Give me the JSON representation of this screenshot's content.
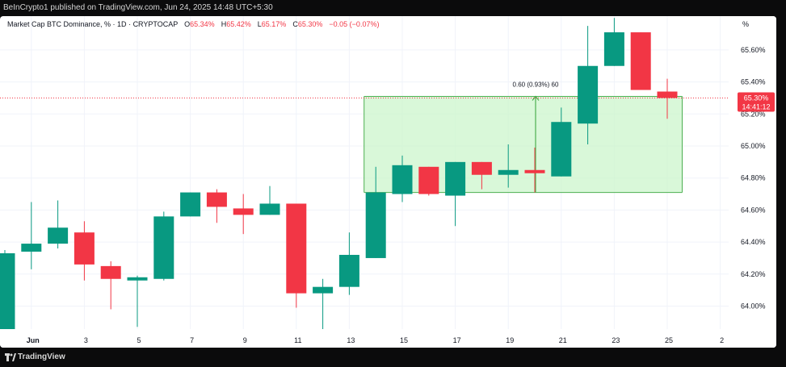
{
  "header": {
    "published_text": "BeInCrypto1 published on TradingView.com, Jun 24, 2025 14:48 UTC+5:30"
  },
  "legend": {
    "symbol": "Market Cap BTC Dominance, %",
    "interval": "1D",
    "exchange": "CRYPTOCAP",
    "o_label": "O",
    "o_value": "65.34%",
    "h_label": "H",
    "h_value": "65.42%",
    "l_label": "L",
    "l_value": "65.17%",
    "c_label": "C",
    "c_value": "65.30%",
    "change": "−0.05 (−0.07%)"
  },
  "price_badge": {
    "price": "65.30%",
    "countdown": "14:41:12",
    "color": "#f23645"
  },
  "measure_label": "0.60 (0.93%) 60",
  "footer": {
    "brand": "TradingView",
    "icon": "tradingview-logo-icon"
  },
  "colors": {
    "up": "#089981",
    "down": "#f23645",
    "range_fill": "#ccf5cc",
    "range_line": "#4caf50"
  },
  "chart_data": {
    "type": "candlestick",
    "y_unit": "%",
    "y_ticks": [
      "65.60%",
      "65.40%",
      "65.20%",
      "65.00%",
      "64.80%",
      "64.60%",
      "64.40%",
      "64.20%",
      "64.00%"
    ],
    "x_ticks": [
      "Jun",
      "3",
      "5",
      "7",
      "9",
      "11",
      "13",
      "15",
      "17",
      "19",
      "21",
      "23",
      "25",
      "2"
    ],
    "grid": true,
    "candles": [
      {
        "date": "May 31",
        "o": 63.85,
        "h": 64.35,
        "l": 63.85,
        "c": 64.33
      },
      {
        "date": "Jun 1",
        "o": 64.34,
        "h": 64.65,
        "l": 64.23,
        "c": 64.39
      },
      {
        "date": "Jun 2",
        "o": 64.39,
        "h": 64.66,
        "l": 64.36,
        "c": 64.49
      },
      {
        "date": "Jun 3",
        "o": 64.46,
        "h": 64.53,
        "l": 64.16,
        "c": 64.26
      },
      {
        "date": "Jun 4",
        "o": 64.25,
        "h": 64.28,
        "l": 63.98,
        "c": 64.17
      },
      {
        "date": "Jun 5",
        "o": 64.16,
        "h": 64.19,
        "l": 63.87,
        "c": 64.18
      },
      {
        "date": "Jun 6",
        "o": 64.17,
        "h": 64.59,
        "l": 64.16,
        "c": 64.56
      },
      {
        "date": "Jun 7",
        "o": 64.56,
        "h": 64.71,
        "l": 64.56,
        "c": 64.71
      },
      {
        "date": "Jun 8",
        "o": 64.71,
        "h": 64.73,
        "l": 64.52,
        "c": 64.62
      },
      {
        "date": "Jun 9",
        "o": 64.61,
        "h": 64.7,
        "l": 64.45,
        "c": 64.57
      },
      {
        "date": "Jun 10",
        "o": 64.57,
        "h": 64.75,
        "l": 64.57,
        "c": 64.64
      },
      {
        "date": "Jun 11",
        "o": 64.64,
        "h": 64.64,
        "l": 63.99,
        "c": 64.08
      },
      {
        "date": "Jun 12",
        "o": 64.08,
        "h": 64.17,
        "l": 63.84,
        "c": 64.12
      },
      {
        "date": "Jun 13",
        "o": 64.12,
        "h": 64.46,
        "l": 64.07,
        "c": 64.32
      },
      {
        "date": "Jun 14",
        "o": 64.3,
        "h": 64.87,
        "l": 64.3,
        "c": 64.71
      },
      {
        "date": "Jun 15",
        "o": 64.7,
        "h": 64.94,
        "l": 64.65,
        "c": 64.88
      },
      {
        "date": "Jun 16",
        "o": 64.87,
        "h": 64.87,
        "l": 64.69,
        "c": 64.7
      },
      {
        "date": "Jun 17",
        "o": 64.69,
        "h": 64.9,
        "l": 64.5,
        "c": 64.9
      },
      {
        "date": "Jun 18",
        "o": 64.9,
        "h": 64.9,
        "l": 64.73,
        "c": 64.82
      },
      {
        "date": "Jun 19",
        "o": 64.82,
        "h": 65.01,
        "l": 64.74,
        "c": 64.85
      },
      {
        "date": "Jun 20",
        "o": 64.85,
        "h": 64.99,
        "l": 64.71,
        "c": 64.83
      },
      {
        "date": "Jun 21",
        "o": 64.81,
        "h": 65.24,
        "l": 64.81,
        "c": 65.15
      },
      {
        "date": "Jun 22",
        "o": 65.14,
        "h": 65.75,
        "l": 65.01,
        "c": 65.5
      },
      {
        "date": "Jun 23",
        "o": 65.5,
        "h": 65.8,
        "l": 65.5,
        "c": 65.71
      },
      {
        "date": "Jun 24",
        "o": 65.71,
        "h": 65.71,
        "l": 65.35,
        "c": 65.35
      },
      {
        "date": "Jun 25",
        "o": 65.34,
        "h": 65.42,
        "l": 65.17,
        "c": 65.3
      }
    ],
    "range_box": {
      "from": "Jun 14",
      "to": "Jun 25",
      "low": 64.71,
      "high": 65.31
    },
    "current_price": 65.3
  }
}
